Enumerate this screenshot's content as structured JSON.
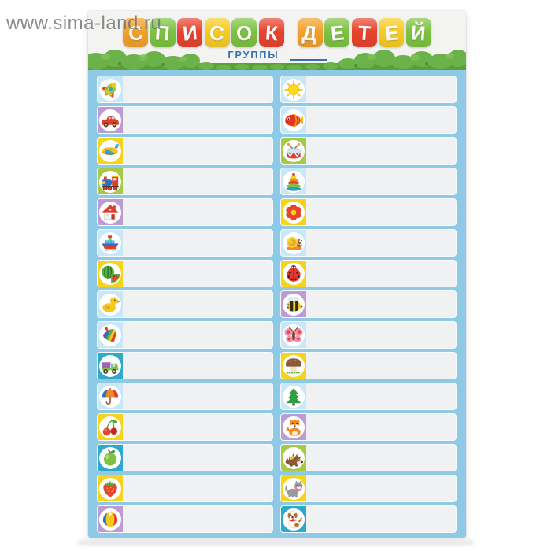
{
  "watermark": {
    "text": "www.sima-land.ru"
  },
  "poster": {
    "title": "СПИСОК ДЕТЕЙ",
    "title_tiles": [
      {
        "char": "С",
        "color": "#f2a12a"
      },
      {
        "char": "П",
        "color": "#7dc242"
      },
      {
        "char": "И",
        "color": "#e8432e"
      },
      {
        "char": "С",
        "color": "#f7cb24"
      },
      {
        "char": "О",
        "color": "#7dc242"
      },
      {
        "char": "К",
        "color": "#e8432e"
      },
      {
        "char": " "
      },
      {
        "char": "Д",
        "color": "#f2a12a"
      },
      {
        "char": "Е",
        "color": "#7dc242"
      },
      {
        "char": "Т",
        "color": "#e8432e"
      },
      {
        "char": "Е",
        "color": "#f7cb24"
      },
      {
        "char": "Й",
        "color": "#7dc242"
      }
    ],
    "subtitle_label": "ГРУППЫ",
    "colors": {
      "body_background": "#8ec9e6",
      "header_background": "#f3f3f1",
      "row_fill": "#eff1f2",
      "subtitle_text": "#3a6fae",
      "grass_green": "#6cb24a"
    },
    "tile_colors": {
      "lightblue": "#c9e7f7",
      "purple": "#bd9bd4",
      "yellow": "#f6d41c",
      "green": "#a6ca46",
      "teal": "#2fa9c9"
    },
    "left_rows": [
      {
        "icon": "rocket-icon",
        "tile": "lightblue"
      },
      {
        "icon": "car-icon",
        "tile": "purple"
      },
      {
        "icon": "airplane-icon",
        "tile": "yellow"
      },
      {
        "icon": "train-icon",
        "tile": "green"
      },
      {
        "icon": "house-icon",
        "tile": "purple"
      },
      {
        "icon": "ship-icon",
        "tile": "lightblue"
      },
      {
        "icon": "watermelon-icon",
        "tile": "yellow"
      },
      {
        "icon": "duck-icon",
        "tile": "lightblue"
      },
      {
        "icon": "spinning-top-icon",
        "tile": "lightblue"
      },
      {
        "icon": "toy-truck-icon",
        "tile": "teal"
      },
      {
        "icon": "umbrella-icon",
        "tile": "lightblue"
      },
      {
        "icon": "cherry-icon",
        "tile": "yellow"
      },
      {
        "icon": "apple-icon",
        "tile": "teal"
      },
      {
        "icon": "strawberry-icon",
        "tile": "yellow"
      },
      {
        "icon": "ball-icon",
        "tile": "purple"
      }
    ],
    "right_rows": [
      {
        "icon": "sun-icon",
        "tile": "lightblue"
      },
      {
        "icon": "fish-icon",
        "tile": "lightblue"
      },
      {
        "icon": "drum-icon",
        "tile": "green"
      },
      {
        "icon": "pyramid-icon",
        "tile": "lightblue"
      },
      {
        "icon": "flower-icon",
        "tile": "yellow"
      },
      {
        "icon": "snail-icon",
        "tile": "lightblue"
      },
      {
        "icon": "ladybug-icon",
        "tile": "yellow"
      },
      {
        "icon": "bee-icon",
        "tile": "purple"
      },
      {
        "icon": "butterfly-icon",
        "tile": "lightblue"
      },
      {
        "icon": "mushroom-icon",
        "tile": "yellow"
      },
      {
        "icon": "fir-tree-icon",
        "tile": "lightblue"
      },
      {
        "icon": "fox-icon",
        "tile": "purple"
      },
      {
        "icon": "hedgehog-icon",
        "tile": "green"
      },
      {
        "icon": "cat-icon",
        "tile": "yellow"
      },
      {
        "icon": "dog-icon",
        "tile": "teal"
      }
    ]
  }
}
